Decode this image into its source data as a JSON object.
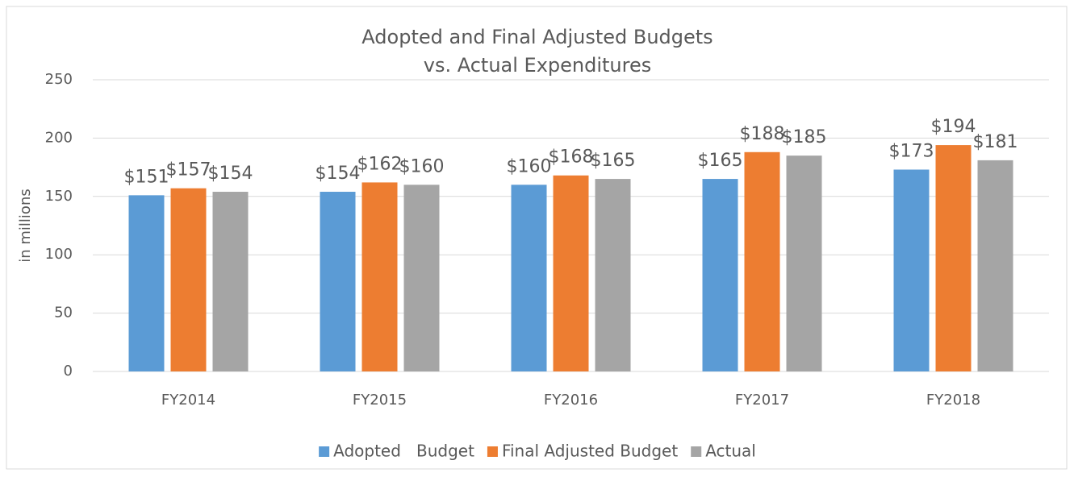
{
  "chart_data": {
    "type": "bar",
    "title": [
      "Adopted and Final Adjusted Budgets",
      "vs. Actual Expenditures"
    ],
    "y_label": "in millions",
    "categories": [
      "FY2014",
      "FY2015",
      "FY2016",
      "FY2017",
      "FY2018"
    ],
    "series": [
      {
        "name": "Adopted   Budget",
        "color": "#5b9bd5",
        "values": [
          151,
          154,
          160,
          165,
          173
        ],
        "value_labels": [
          "$151",
          "$154",
          "$160",
          "$165",
          "$173"
        ]
      },
      {
        "name": "Final Adjusted Budget",
        "color": "#ed7d31",
        "values": [
          157,
          162,
          168,
          188,
          194
        ],
        "value_labels": [
          "$157",
          "$162",
          "$168",
          "$188",
          "$194"
        ]
      },
      {
        "name": "Actual",
        "color": "#a5a5a5",
        "values": [
          154,
          160,
          165,
          185,
          181
        ],
        "value_labels": [
          "$154",
          "$160",
          "$165",
          "$185",
          "$181"
        ]
      }
    ],
    "ylim": [
      0,
      250
    ],
    "yticks": [
      0,
      50,
      100,
      150,
      200,
      250
    ],
    "grid": true,
    "legend": "bottom"
  }
}
